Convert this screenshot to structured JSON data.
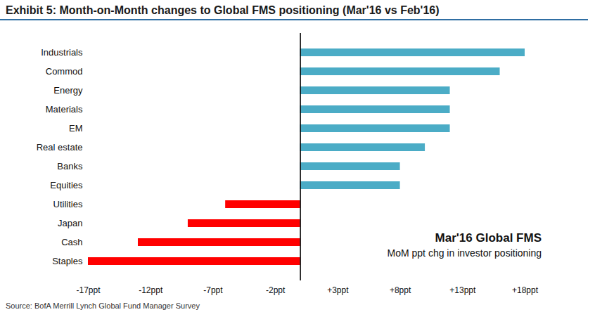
{
  "chart_data": {
    "type": "bar",
    "orientation": "horizontal",
    "title": "Exhibit 5: Month-on-Month changes to Global FMS positioning (Mar'16 vs Feb'16)",
    "annotations": [
      "Mar'16 Global FMS",
      "MoM ppt chg in investor positioning"
    ],
    "source": "Source: BofA Merrill Lynch Global Fund Manager Survey",
    "categories": [
      "Industrials",
      "Commod",
      "Energy",
      "Materials",
      "EM",
      "Real estate",
      "Banks",
      "Equities",
      "Utilities",
      "Japan",
      "Cash",
      "Staples"
    ],
    "values": [
      18,
      16,
      12,
      12,
      12,
      10,
      8,
      8,
      -6,
      -9,
      -13,
      -17
    ],
    "colors": [
      "#4bacc6",
      "#4bacc6",
      "#4bacc6",
      "#4bacc6",
      "#4bacc6",
      "#4bacc6",
      "#4bacc6",
      "#4bacc6",
      "#ff0000",
      "#ff0000",
      "#ff0000",
      "#ff0000"
    ],
    "xlim": [
      -17,
      18
    ],
    "xticks": [
      {
        "value": -17,
        "label": "-17ppt"
      },
      {
        "value": -12,
        "label": "-12ppt"
      },
      {
        "value": -7,
        "label": "-7ppt"
      },
      {
        "value": -2,
        "label": "-2ppt"
      },
      {
        "value": 3,
        "label": "+3ppt"
      },
      {
        "value": 8,
        "label": "+8ppt"
      },
      {
        "value": 13,
        "label": "+13ppt"
      },
      {
        "value": 18,
        "label": "+18ppt"
      }
    ],
    "grid": false
  }
}
